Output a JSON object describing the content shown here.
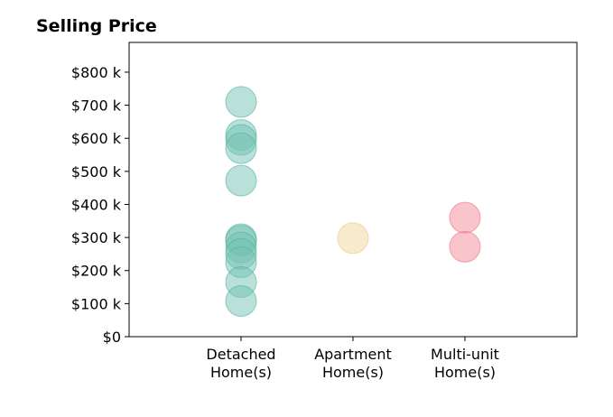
{
  "chart_data": {
    "type": "scatter",
    "title": "Selling Price",
    "xlabel": "",
    "ylabel": "",
    "categories": [
      [
        "Detached",
        "Home(s)"
      ],
      [
        "Apartment",
        "Home(s)"
      ],
      [
        "Multi-unit",
        "Home(s)"
      ]
    ],
    "xlim": [
      -1,
      3
    ],
    "ylim": [
      0,
      890
    ],
    "y_ticks": [
      0,
      100,
      200,
      300,
      400,
      500,
      600,
      700,
      800
    ],
    "y_tick_labels": [
      "$0",
      "$100 k",
      "$200 k",
      "$300 k",
      "$400 k",
      "$500 k",
      "$600 k",
      "$700 k",
      "$800 k"
    ],
    "grid": false,
    "series": [
      {
        "category": 0,
        "color": "#74c2b3",
        "edge": "#4fb09e",
        "values": [
          710,
          610,
          595,
          570,
          472,
          295,
          290,
          270,
          250,
          225,
          165,
          108
        ]
      },
      {
        "category": 1,
        "color": "#f1d79b",
        "edge": "#e8c77a",
        "values": [
          298
        ]
      },
      {
        "category": 2,
        "color": "#f48b98",
        "edge": "#ee6f80",
        "values": [
          360,
          272
        ]
      }
    ]
  }
}
